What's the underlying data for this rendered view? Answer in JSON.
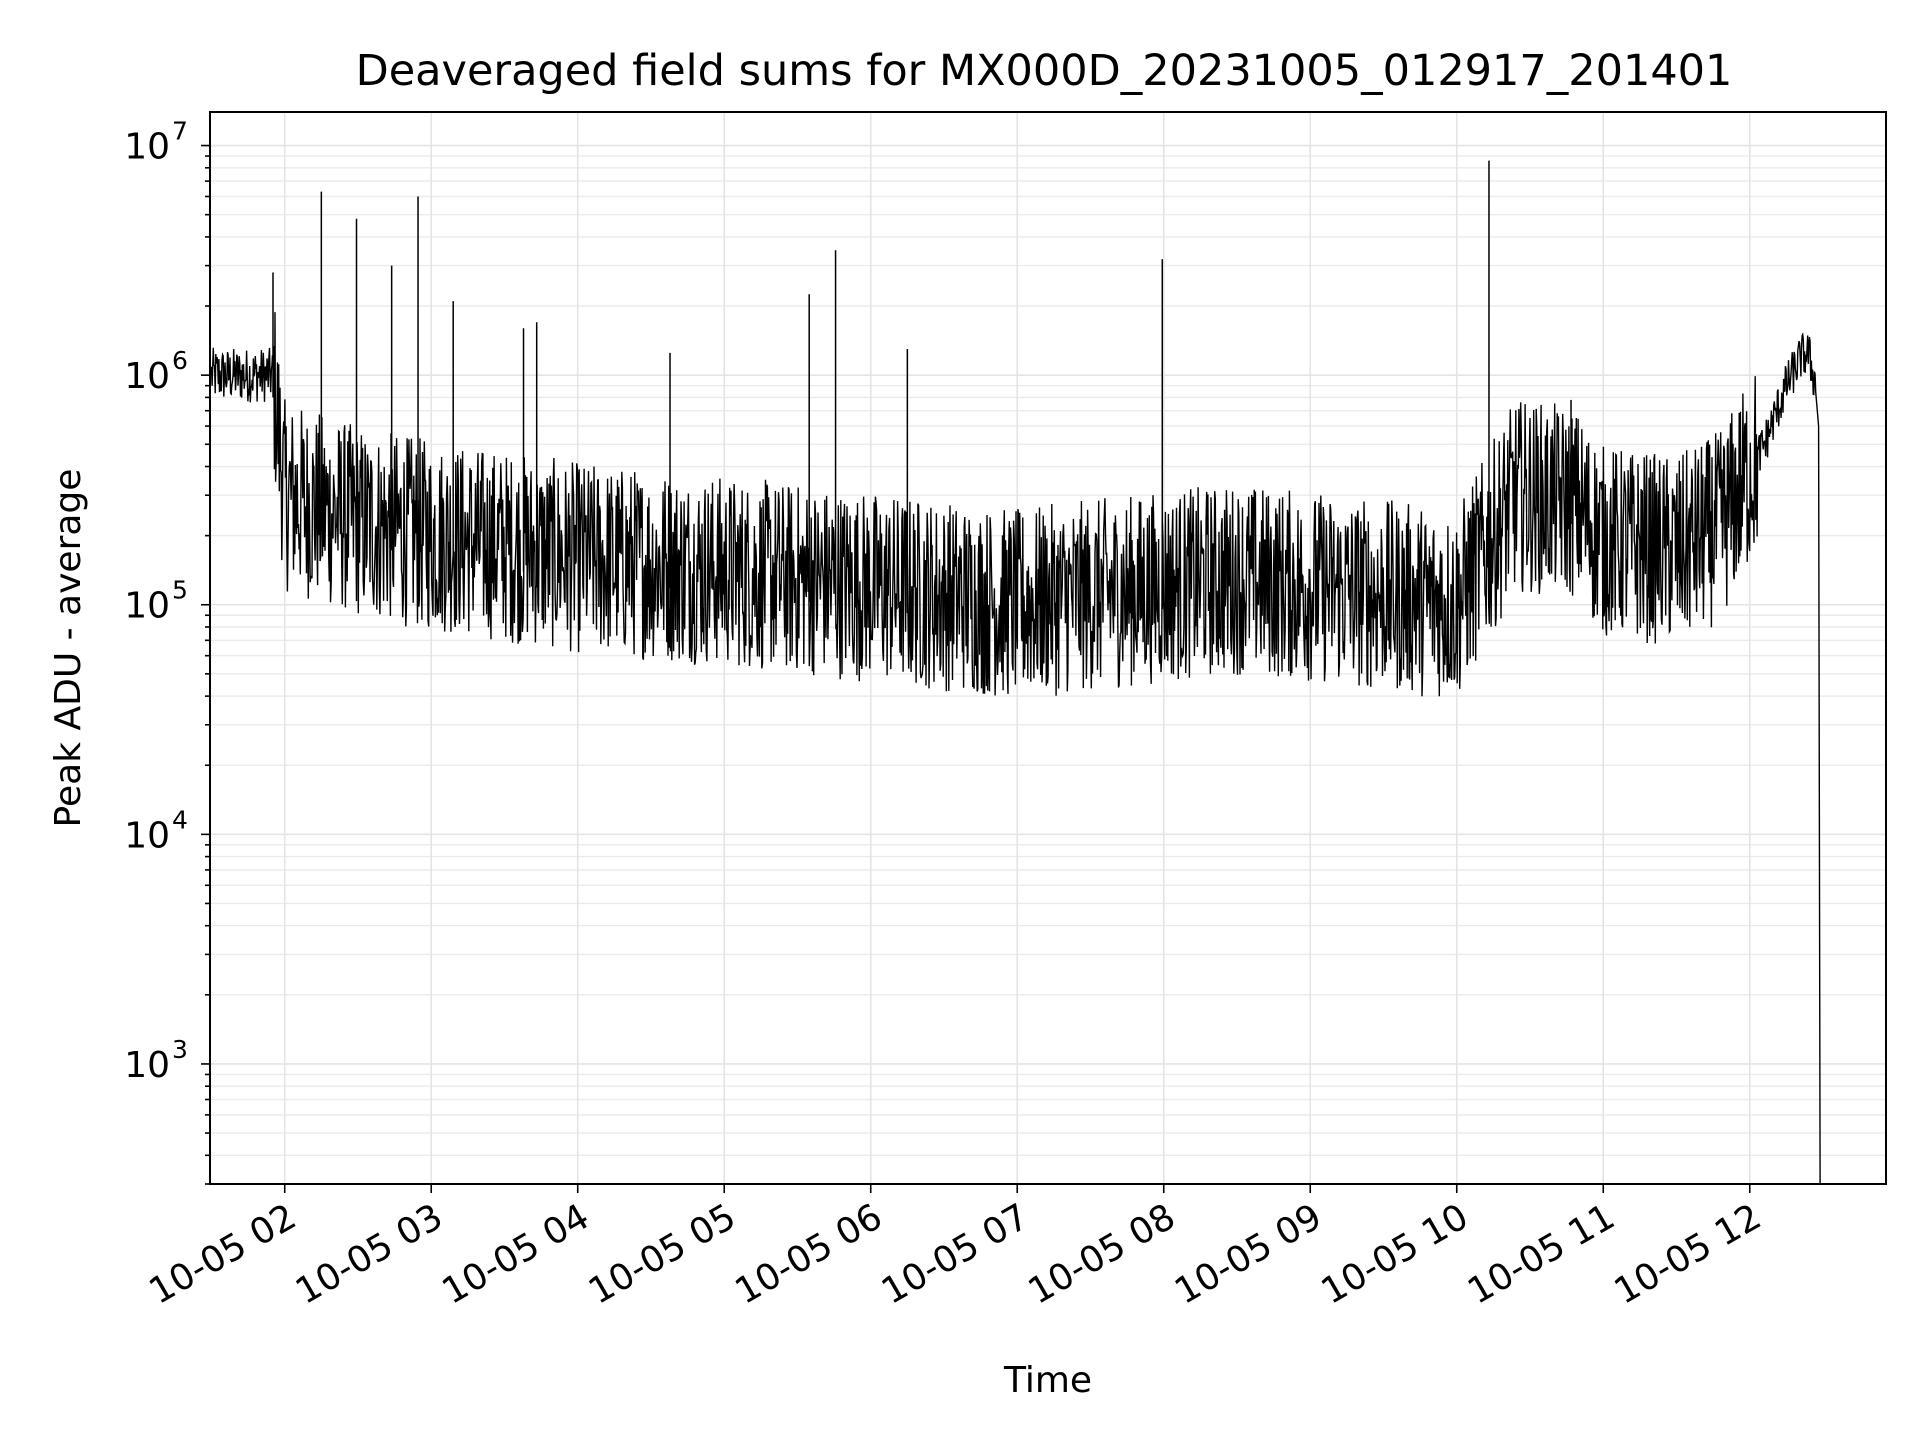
{
  "chart_data": {
    "type": "line",
    "title": "Deaveraged field sums for MX000D_20231005_012917_201401",
    "xlabel": "Time",
    "ylabel": "Peak ADU - average",
    "x_ticks": [
      "10-05 02",
      "10-05 03",
      "10-05 04",
      "10-05 05",
      "10-05 06",
      "10-05 07",
      "10-05 08",
      "10-05 09",
      "10-05 10",
      "10-05 11",
      "10-05 12"
    ],
    "x_tick_hours": [
      2,
      3,
      4,
      5,
      6,
      7,
      8,
      9,
      10,
      11,
      12
    ],
    "xlim_hours": [
      1.49,
      12.93
    ],
    "y_scale": "log",
    "ylim": [
      300,
      14000000
    ],
    "y_ticks": [
      {
        "base": "10",
        "exp": "3",
        "value": 1000
      },
      {
        "base": "10",
        "exp": "4",
        "value": 10000
      },
      {
        "base": "10",
        "exp": "5",
        "value": 100000
      },
      {
        "base": "10",
        "exp": "6",
        "value": 1000000
      },
      {
        "base": "10",
        "exp": "7",
        "value": 10000000
      }
    ],
    "grid": true,
    "line_color": "#000000",
    "series": [
      {
        "trend": [
          [
            1.5,
            1000000
          ],
          [
            1.7,
            1000000
          ],
          [
            1.92,
            1000000
          ],
          [
            2.0,
            300000
          ],
          [
            2.5,
            230000
          ],
          [
            3.0,
            200000
          ],
          [
            3.5,
            180000
          ],
          [
            4.0,
            160000
          ],
          [
            4.5,
            150000
          ],
          [
            5.0,
            140000
          ],
          [
            5.5,
            130000
          ],
          [
            6.0,
            120000
          ],
          [
            6.5,
            110000
          ],
          [
            7.0,
            100000
          ],
          [
            7.5,
            110000
          ],
          [
            8.0,
            120000
          ],
          [
            8.5,
            130000
          ],
          [
            9.0,
            120000
          ],
          [
            9.5,
            110000
          ],
          [
            10.0,
            100000
          ],
          [
            10.4,
            300000
          ],
          [
            10.8,
            280000
          ],
          [
            11.0,
            190000
          ],
          [
            11.5,
            170000
          ],
          [
            11.8,
            220000
          ],
          [
            12.1,
            500000
          ],
          [
            12.25,
            900000
          ],
          [
            12.35,
            1200000
          ],
          [
            12.4,
            1250000
          ],
          [
            12.45,
            900000
          ],
          [
            12.48,
            300
          ]
        ],
        "spikes": [
          [
            1.92,
            2800000
          ],
          [
            2.25,
            6300000
          ],
          [
            2.49,
            4800000
          ],
          [
            2.73,
            3000000
          ],
          [
            2.91,
            6000000
          ],
          [
            3.15,
            2100000
          ],
          [
            3.63,
            1600000
          ],
          [
            3.72,
            1700000
          ],
          [
            4.63,
            1250000
          ],
          [
            5.58,
            2250000
          ],
          [
            5.76,
            3500000
          ],
          [
            6.25,
            1300000
          ],
          [
            7.99,
            3200000
          ],
          [
            10.22,
            8600000
          ],
          [
            10.78,
            780000
          ]
        ]
      }
    ]
  }
}
